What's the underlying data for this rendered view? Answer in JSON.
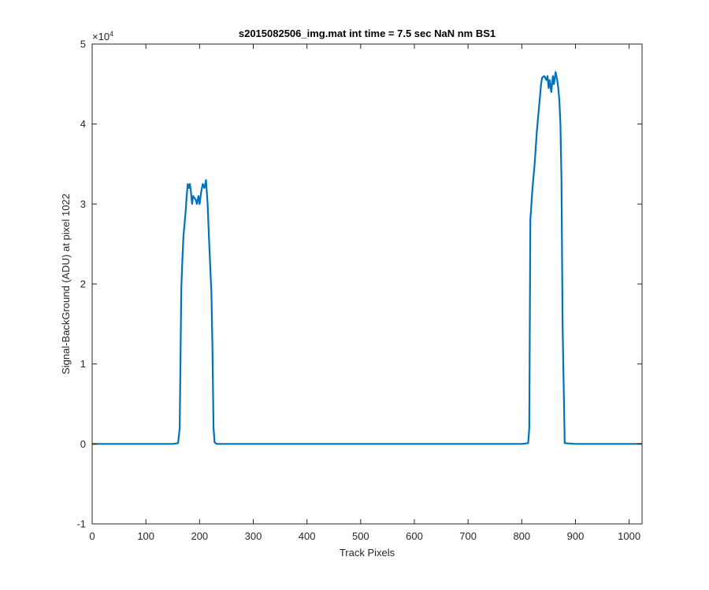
{
  "chart_data": {
    "type": "line",
    "title": "s2015082506_img.mat int time = 7.5 sec  NaN nm BS1",
    "xlabel": "Track Pixels",
    "ylabel": "Signal-BackGround (ADU) at pixel 1022",
    "exponent_label": "×10",
    "exponent_power": "4",
    "xlim": [
      0,
      1024
    ],
    "ylim": [
      -1,
      5
    ],
    "y_scale_factor": 10000,
    "xticks": [
      0,
      100,
      200,
      300,
      400,
      500,
      600,
      700,
      800,
      900,
      1000
    ],
    "xtick_labels": [
      "0",
      "100",
      "200",
      "300",
      "400",
      "500",
      "600",
      "700",
      "800",
      "900",
      "1000"
    ],
    "yticks": [
      -1,
      0,
      1,
      2,
      3,
      4,
      5
    ],
    "ytick_labels": [
      "-1",
      "0",
      "1",
      "2",
      "3",
      "4",
      "5"
    ],
    "grid": false,
    "line_color": "#0072bd",
    "series": [
      {
        "x": [
          0,
          150,
          160,
          163,
          166,
          168,
          170,
          172,
          174,
          176,
          178,
          180,
          182,
          184,
          186,
          188,
          190,
          193,
          195,
          198,
          200,
          203,
          206,
          209,
          212,
          215,
          218,
          220,
          222,
          224,
          226,
          228,
          232,
          260,
          400,
          600,
          800,
          812,
          814,
          816,
          818,
          820,
          824,
          828,
          832,
          836,
          838,
          842,
          846,
          848,
          850,
          852,
          855,
          858,
          860,
          863,
          866,
          868,
          870,
          872,
          874,
          876,
          880,
          900,
          1024
        ],
        "values": [
          0,
          0,
          0.01,
          0.2,
          1.95,
          2.3,
          2.6,
          2.75,
          2.9,
          3.1,
          3.25,
          3.2,
          3.25,
          3.15,
          3.0,
          3.1,
          3.08,
          3.05,
          3.0,
          3.1,
          3.0,
          3.15,
          3.25,
          3.2,
          3.3,
          3.0,
          2.5,
          2.2,
          1.9,
          1.2,
          0.2,
          0.02,
          0,
          0,
          0,
          0,
          0,
          0.01,
          0.2,
          2.8,
          3.0,
          3.2,
          3.5,
          3.9,
          4.2,
          4.5,
          4.58,
          4.6,
          4.55,
          4.6,
          4.45,
          4.55,
          4.4,
          4.6,
          4.5,
          4.65,
          4.55,
          4.45,
          4.3,
          4.0,
          3.3,
          1.5,
          0.01,
          0,
          0
        ]
      }
    ]
  }
}
